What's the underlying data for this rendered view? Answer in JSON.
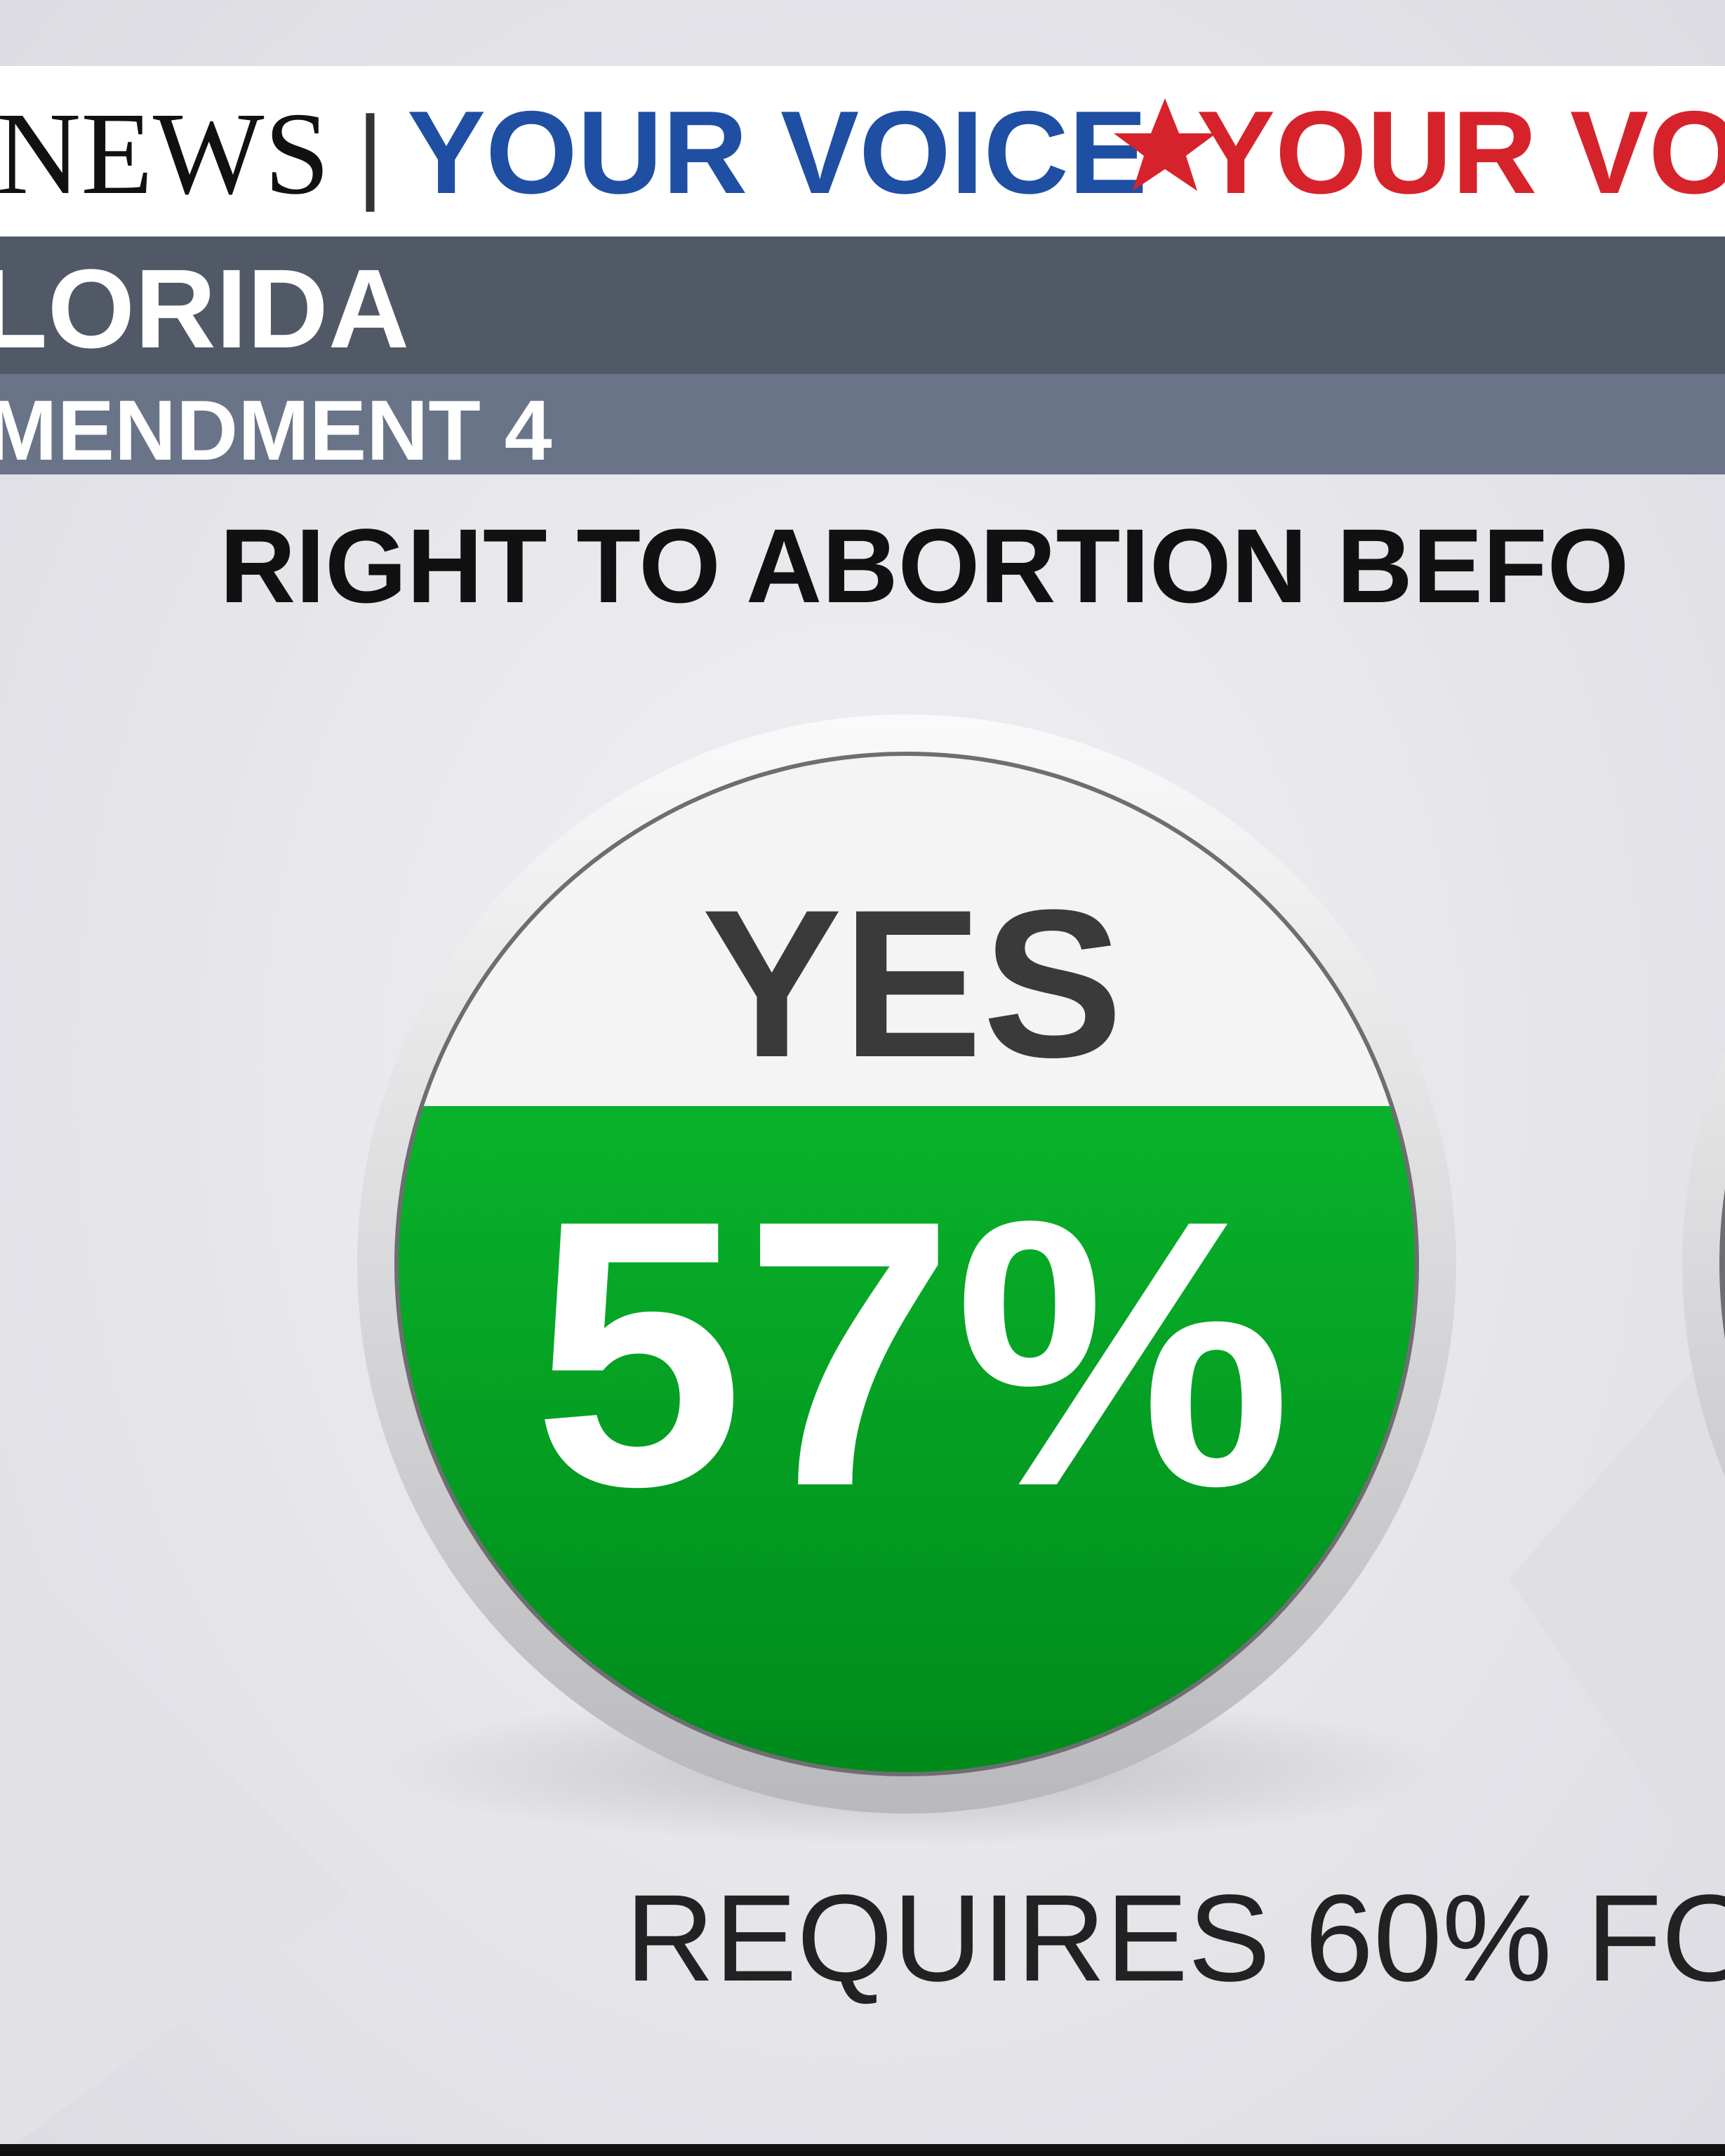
{
  "header": {
    "network": "NEWS",
    "separator": "|",
    "slogan_left": "YOUR VOICE",
    "slogan_right": "YOUR VO"
  },
  "state": "LORIDA",
  "measure": "MENDMENT 4",
  "question": "RIGHT TO ABORTION BEFO",
  "result": {
    "label": "YES",
    "share": "57%"
  },
  "footnote": "REQUIRES 60% FO"
}
